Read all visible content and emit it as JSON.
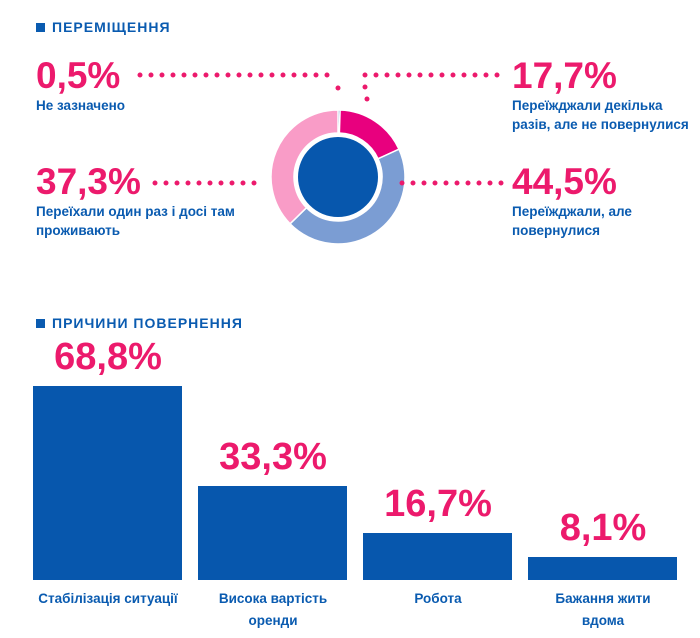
{
  "section1": {
    "title": "ПЕРЕМІЩЕННЯ"
  },
  "section2": {
    "title": "ПРИЧИНИ ПОВЕРНЕННЯ"
  },
  "chart_data": [
    {
      "type": "pie",
      "title": "ПЕРЕМІЩЕННЯ",
      "slices": [
        {
          "label": "Не зазначено",
          "value": 0.5,
          "display": "0,5%",
          "color": "#0757ad"
        },
        {
          "label": "Переїжджали декілька разів, але не повернулися",
          "value": 17.7,
          "display": "17,7%",
          "color": "#e8007e"
        },
        {
          "label": "Переїжджали, але повернулися",
          "value": 44.5,
          "display": "44,5%",
          "color": "#7b9dd3"
        },
        {
          "label": "Переїхали один раз і досі там проживають",
          "value": 37.3,
          "display": "37,3%",
          "color": "#f99cc7"
        }
      ]
    },
    {
      "type": "bar",
      "title": "ПРИЧИНИ ПОВЕРНЕННЯ",
      "categories": [
        "Стабілізація ситуації",
        "Висока вартість оренди",
        "Робота",
        "Бажання жити вдома"
      ],
      "values": [
        68.8,
        33.3,
        16.7,
        8.1
      ],
      "labels": [
        "68,8%",
        "33,3%",
        "16,7%",
        "8,1%"
      ],
      "color": "#0757ad"
    }
  ]
}
